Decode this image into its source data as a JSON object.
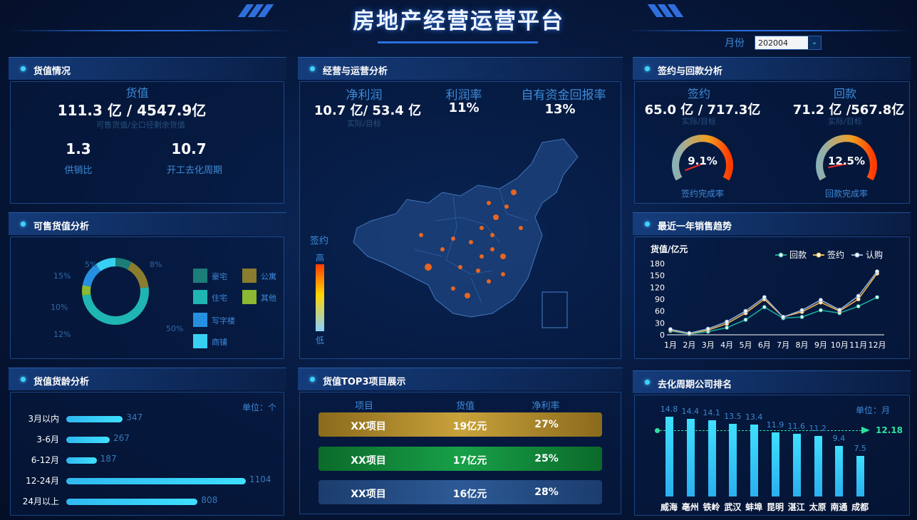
{
  "header": {
    "title": "房地产经营运营平台"
  },
  "filter": {
    "month_label": "月份",
    "month_value": "202004",
    "arrow": "⌄"
  },
  "inventory": {
    "panel_title": "货值情况",
    "title": "货值",
    "value": "111.3 亿 / 4547.9亿",
    "sub": "可售货值/全口径剩余货值",
    "kpis": [
      {
        "value": "1.3",
        "label": "供销比"
      },
      {
        "value": "10.7",
        "label": "开工去化周期"
      }
    ]
  },
  "ops": {
    "panel_title": "经营与运营分析",
    "kpis": [
      {
        "title": "净利润",
        "value": "10.7 亿/ 53.4 亿",
        "sub": "实际/目标"
      },
      {
        "title": "利润率",
        "value": "11%",
        "sub": ""
      },
      {
        "title": "自有资金回报率",
        "value": "13%",
        "sub": ""
      }
    ],
    "map_legend": {
      "title": "签约",
      "high": "高",
      "low": "低"
    }
  },
  "sign": {
    "panel_title": "签约与回款分析",
    "items": [
      {
        "title": "签约",
        "value": "65.0 亿 / 717.3亿",
        "sub": "实际/目标",
        "gauge": 9.1,
        "gauge_label": "9.1%",
        "caption": "签约完成率"
      },
      {
        "title": "回款",
        "value": "71.2 亿 /567.8亿",
        "sub": "实际/目标",
        "gauge": 12.5,
        "gauge_label": "12.5%",
        "caption": "回款完成率"
      }
    ]
  },
  "saleable": {
    "panel_title": "可售货值分析",
    "legend": [
      {
        "name": "豪宅",
        "color": "#1b7e78"
      },
      {
        "name": "公寓",
        "color": "#8a7d2e"
      },
      {
        "name": "住宅",
        "color": "#1fb5b3"
      },
      {
        "name": "其他",
        "color": "#8cb832"
      },
      {
        "name": "写字楼",
        "color": "#2690e0"
      },
      {
        "name": "商铺",
        "color": "#38d0f2"
      }
    ],
    "slice_labels": [
      "5%",
      "8%",
      "15%",
      "10%",
      "12%",
      "50%"
    ]
  },
  "age": {
    "panel_title": "货值货龄分析",
    "unit": "单位：个",
    "rows": [
      {
        "label": "3月以内",
        "value": 347
      },
      {
        "label": "3-6月",
        "value": 267
      },
      {
        "label": "6-12月",
        "value": 187
      },
      {
        "label": "12-24月",
        "value": 1104
      },
      {
        "label": "24月以上",
        "value": 808
      }
    ]
  },
  "top3": {
    "panel_title": "货值TOP3项目展示",
    "headers": [
      "项目",
      "货值",
      "净利率"
    ],
    "rows": [
      {
        "name": "XX项目",
        "value": "19亿元",
        "rate": "27%",
        "color": "#b8922a"
      },
      {
        "name": "XX项目",
        "value": "17亿元",
        "rate": "25%",
        "color": "#128a3c"
      },
      {
        "name": "XX项目",
        "value": "16亿元",
        "rate": "28%",
        "color": "#25508a"
      }
    ]
  },
  "trend": {
    "panel_title": "最近一年销售趋势",
    "unit": "货值/亿元"
  },
  "rank": {
    "panel_title": "去化周期公司排名",
    "unit": "单位：月",
    "avg_label": "12.18"
  },
  "chart_data": [
    {
      "type": "pie",
      "title": "可售货值分析",
      "categories": [
        "豪宅",
        "公寓",
        "住宅",
        "其他",
        "写字楼",
        "商铺"
      ],
      "values": [
        8,
        15,
        50,
        5,
        12,
        10
      ],
      "labels": [
        "8%",
        "15%",
        "50%",
        "5%",
        "12%",
        "10%"
      ]
    },
    {
      "type": "bar",
      "title": "货值货龄分析",
      "categories": [
        "3月以内",
        "3-6月",
        "6-12月",
        "12-24月",
        "24月以上"
      ],
      "values": [
        347,
        267,
        187,
        1104,
        808
      ]
    },
    {
      "type": "line",
      "title": "最近一年销售趋势",
      "ylabel": "货值/亿元",
      "categories": [
        "1月",
        "2月",
        "3月",
        "4月",
        "5月",
        "6月",
        "7月",
        "8月",
        "9月",
        "10月",
        "11月",
        "12月"
      ],
      "ylim": [
        0,
        180
      ],
      "yticks": [
        0,
        30,
        60,
        90,
        120,
        150,
        180
      ],
      "legend_position": "top-right",
      "series": [
        {
          "name": "回款",
          "color": "#1aa89a",
          "values": [
            10,
            2,
            8,
            18,
            38,
            70,
            42,
            45,
            62,
            55,
            72,
            95
          ]
        },
        {
          "name": "签约",
          "color": "#f0b34a",
          "values": [
            12,
            3,
            12,
            28,
            55,
            90,
            45,
            58,
            82,
            60,
            90,
            155
          ]
        },
        {
          "name": "认购",
          "color": "#8fb0d8",
          "values": [
            14,
            4,
            15,
            33,
            60,
            95,
            45,
            62,
            88,
            63,
            98,
            160
          ]
        }
      ]
    },
    {
      "type": "bar",
      "title": "去化周期公司排名",
      "categories": [
        "威海",
        "亳州",
        "铁岭",
        "武汉",
        "蚌埠",
        "昆明",
        "湛江",
        "太原",
        "南通",
        "成都"
      ],
      "values": [
        14.8,
        14.4,
        14.1,
        13.5,
        13.4,
        11.9,
        11.6,
        11.2,
        9.4,
        7.5
      ],
      "average": 12.18
    }
  ]
}
